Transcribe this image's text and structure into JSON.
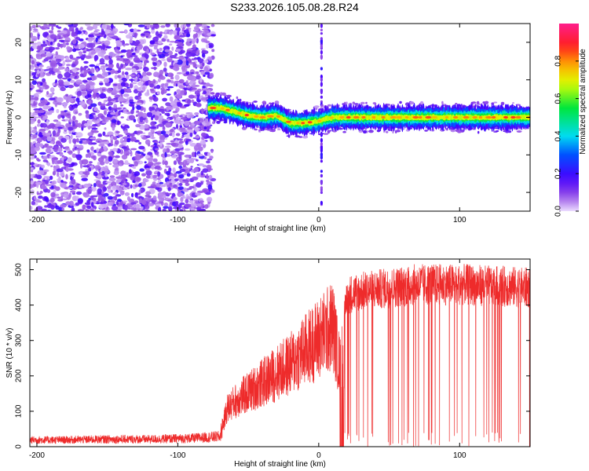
{
  "title": "S233.2026.105.08.28.R24",
  "colors": {
    "ridge": "#ff2a2a",
    "snr_line": "#ee2b2b",
    "axes": "#000000",
    "background": "#ffffff"
  },
  "chart_data": [
    {
      "type": "heatmap",
      "title": "S233.2026.105.08.28.R24",
      "xlabel": "Height of straight line (km)",
      "ylabel": "Frequency (Hz)",
      "xlim": [
        -205,
        150
      ],
      "ylim": [
        -25,
        25
      ],
      "x_ticks": [
        -200,
        -100,
        0,
        100
      ],
      "y_ticks": [
        -20,
        -10,
        0,
        10,
        20
      ],
      "noise_region": {
        "x": [
          -205,
          -75
        ],
        "description_level": "scattered low amplitude"
      },
      "ridge": {
        "x": [
          -78,
          -70,
          -60,
          -50,
          -40,
          -30,
          -20,
          -10,
          0,
          10,
          20,
          40,
          60,
          80,
          100,
          120,
          150
        ],
        "freq": [
          2.5,
          2.5,
          1.5,
          0.5,
          0.0,
          0.5,
          -1.5,
          -1.5,
          -1.0,
          0.0,
          0.0,
          0.0,
          0.0,
          0.0,
          0.0,
          0.0,
          0.0
        ]
      },
      "vertical_streak_x": 2,
      "colorbar": {
        "label": "Normalized spectral amplitude",
        "range": [
          0,
          1
        ],
        "ticks": [
          "0.0",
          "0.2",
          "0.4",
          "0.6",
          "0.8"
        ]
      },
      "grid": false
    },
    {
      "type": "line",
      "xlabel": "Height of straight line (km)",
      "ylabel": "SNR (10 * v/v)",
      "xlim": [
        -205,
        150
      ],
      "ylim": [
        0,
        530
      ],
      "x_ticks": [
        -200,
        -100,
        0,
        100
      ],
      "y_ticks": [
        0,
        100,
        200,
        300,
        400,
        500
      ],
      "series": [
        {
          "x": [
            -205,
            -180,
            -150,
            -120,
            -90,
            -70,
            -65,
            -60,
            -50,
            -40,
            -30,
            -20,
            -10,
            0,
            10,
            15,
            20,
            30,
            50,
            70,
            100,
            130,
            150
          ],
          "y": [
            20,
            20,
            22,
            22,
            25,
            30,
            120,
            140,
            170,
            200,
            230,
            260,
            300,
            340,
            380,
            250,
            440,
            450,
            460,
            470,
            470,
            465,
            460
          ],
          "dropout_band_x": [
            15,
            18
          ],
          "dropouts_start_x": 20
        }
      ],
      "grid": false
    }
  ]
}
